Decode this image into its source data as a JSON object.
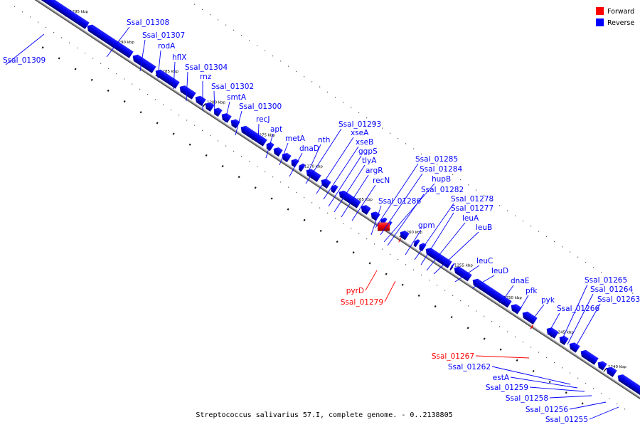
{
  "caption": "Streptococcus salivarius 57.I, complete genome. - 0..2138805",
  "legend": {
    "forward_label": "Forward",
    "reverse_label": "Reverse",
    "forward_color": "#ff0000",
    "reverse_color": "#0000ff"
  },
  "genome": {
    "name": "Streptococcus salivarius 57.I, complete genome.",
    "range": [
      0,
      2138805
    ],
    "visible_range_kbp": [
      1240,
      1295
    ]
  },
  "ticks": [
    "1295 kbp",
    "1290 kbp",
    "1285 kbp",
    "1280 kbp",
    "1275 kbp",
    "1270 kbp",
    "1265 kbp",
    "1260 kbp",
    "1255 kbp",
    "1250 kbp",
    "1245 kbp",
    "1240 kbp"
  ],
  "genes": [
    {
      "name": "Ssal_01309",
      "strand": "reverse"
    },
    {
      "name": "Ssal_01308",
      "strand": "reverse"
    },
    {
      "name": "Ssal_01307",
      "strand": "reverse"
    },
    {
      "name": "rodA",
      "strand": "reverse"
    },
    {
      "name": "hflX",
      "strand": "reverse"
    },
    {
      "name": "Ssal_01304",
      "strand": "reverse"
    },
    {
      "name": "rnz",
      "strand": "reverse"
    },
    {
      "name": "Ssal_01302",
      "strand": "reverse"
    },
    {
      "name": "smtA",
      "strand": "reverse"
    },
    {
      "name": "Ssal_01300",
      "strand": "reverse"
    },
    {
      "name": "recJ",
      "strand": "reverse"
    },
    {
      "name": "apt",
      "strand": "reverse"
    },
    {
      "name": "metA",
      "strand": "reverse"
    },
    {
      "name": "dnaD",
      "strand": "reverse"
    },
    {
      "name": "nth",
      "strand": "reverse"
    },
    {
      "name": "Ssal_01293",
      "strand": "reverse"
    },
    {
      "name": "xseA",
      "strand": "reverse"
    },
    {
      "name": "xseB",
      "strand": "reverse"
    },
    {
      "name": "ggpS",
      "strand": "reverse"
    },
    {
      "name": "tlyA",
      "strand": "reverse"
    },
    {
      "name": "argR",
      "strand": "reverse"
    },
    {
      "name": "recN",
      "strand": "reverse"
    },
    {
      "name": "Ssal_01286",
      "strand": "reverse"
    },
    {
      "name": "Ssal_01285",
      "strand": "reverse"
    },
    {
      "name": "Ssal_01284",
      "strand": "reverse"
    },
    {
      "name": "hupB",
      "strand": "reverse"
    },
    {
      "name": "Ssal_01282",
      "strand": "reverse"
    },
    {
      "name": "gpm",
      "strand": "reverse"
    },
    {
      "name": "Ssal_01278",
      "strand": "reverse"
    },
    {
      "name": "Ssal_01277",
      "strand": "reverse"
    },
    {
      "name": "leuA",
      "strand": "reverse"
    },
    {
      "name": "leuB",
      "strand": "reverse"
    },
    {
      "name": "leuC",
      "strand": "reverse"
    },
    {
      "name": "leuD",
      "strand": "reverse"
    },
    {
      "name": "dnaE",
      "strand": "reverse"
    },
    {
      "name": "pfk",
      "strand": "reverse"
    },
    {
      "name": "pyk",
      "strand": "reverse"
    },
    {
      "name": "Ssal_01266",
      "strand": "reverse"
    },
    {
      "name": "Ssal_01265",
      "strand": "reverse"
    },
    {
      "name": "Ssal_01264",
      "strand": "reverse"
    },
    {
      "name": "Ssal_01263",
      "strand": "reverse"
    },
    {
      "name": "pyrD",
      "strand": "forward"
    },
    {
      "name": "Ssal_01279",
      "strand": "forward"
    },
    {
      "name": "Ssal_01267",
      "strand": "forward"
    },
    {
      "name": "Ssal_01262",
      "strand": "reverse"
    },
    {
      "name": "estA",
      "strand": "reverse"
    },
    {
      "name": "Ssal_01259",
      "strand": "reverse"
    },
    {
      "name": "Ssal_01258",
      "strand": "reverse"
    },
    {
      "name": "Ssal_01256",
      "strand": "reverse"
    },
    {
      "name": "Ssal_01255",
      "strand": "reverse"
    }
  ]
}
